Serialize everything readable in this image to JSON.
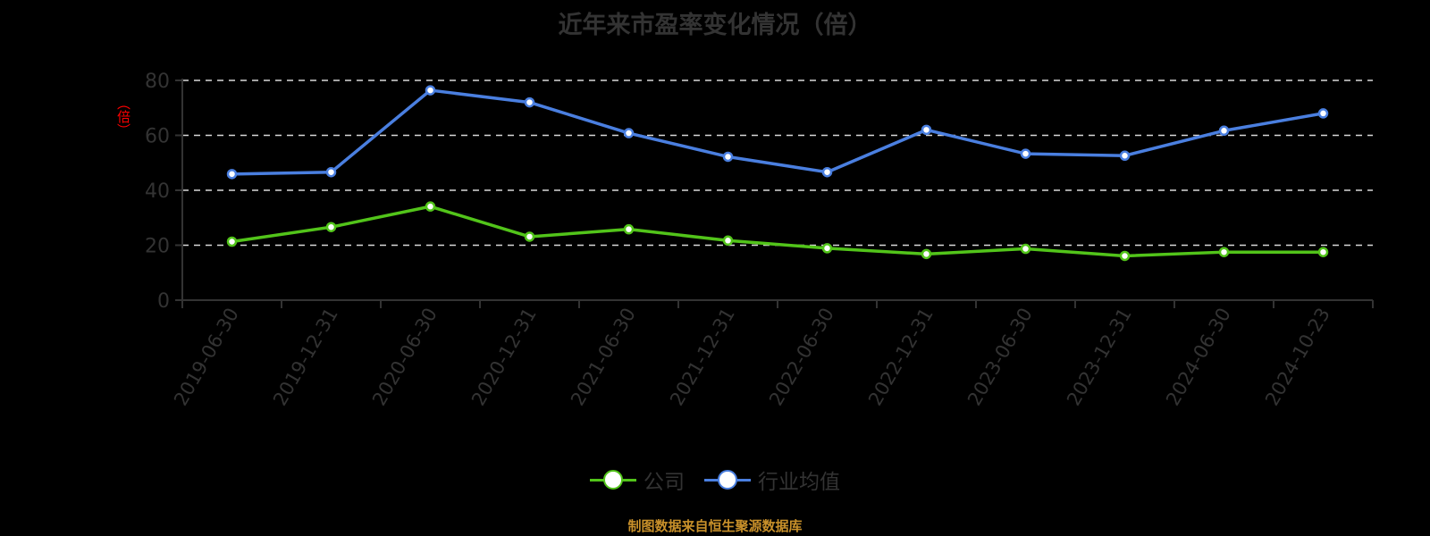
{
  "title": "近年来市盈率变化情况（倍）",
  "y_unit_label": "（倍）",
  "source_note": "制图数据来自恒生聚源数据库",
  "colors": {
    "background": "#000000",
    "company": "#52c41a",
    "industry": "#4a7fe0",
    "grid": "#d9d9d9",
    "axis": "#333333",
    "unit_label": "#ff0000",
    "source": "#c8902a"
  },
  "legend": [
    {
      "label": "公司",
      "color": "#52c41a"
    },
    {
      "label": "行业均值",
      "color": "#4a7fe0"
    }
  ],
  "chart_data": {
    "type": "line",
    "title": "近年来市盈率变化情况（倍）",
    "xlabel": "",
    "ylabel": "（倍）",
    "ylim": [
      0,
      80
    ],
    "yticks": [
      0,
      20,
      40,
      60,
      80
    ],
    "grid": true,
    "legend_position": "bottom",
    "categories": [
      "2019-06-30",
      "2019-12-31",
      "2020-06-30",
      "2020-12-31",
      "2021-06-30",
      "2021-12-31",
      "2022-06-30",
      "2022-12-31",
      "2023-06-30",
      "2023-12-31",
      "2024-06-30",
      "2024-10-23"
    ],
    "series": [
      {
        "name": "公司",
        "color": "#52c41a",
        "values": [
          21.3,
          26.6,
          34.1,
          23.1,
          25.8,
          21.7,
          18.9,
          16.8,
          18.7,
          16.1,
          17.5,
          17.5
        ]
      },
      {
        "name": "行业均值",
        "color": "#4a7fe0",
        "values": [
          45.9,
          46.6,
          76.4,
          72.0,
          60.8,
          52.2,
          46.6,
          62.0,
          53.3,
          52.6,
          61.7,
          68.0
        ]
      }
    ]
  }
}
